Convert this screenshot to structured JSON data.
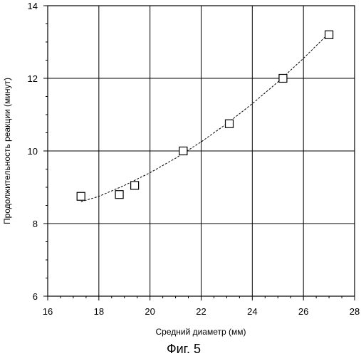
{
  "chart_data": {
    "type": "scatter",
    "title": "",
    "xlabel": "Средний диаметр (мм)",
    "ylabel": "Продолжительность реакции (минут)",
    "caption": "Фиг. 5",
    "xlim": [
      16,
      28
    ],
    "ylim": [
      6,
      14
    ],
    "xticks": [
      "16",
      "18",
      "20",
      "22",
      "24",
      "26",
      "28"
    ],
    "yticks": [
      "6",
      "8",
      "10",
      "12",
      "14"
    ],
    "grid": true,
    "marker": "open-square",
    "series": [
      {
        "x": [
          17.3,
          18.8,
          19.4,
          21.3,
          23.1,
          25.2,
          27.0
        ],
        "y": [
          8.75,
          8.8,
          9.05,
          10.0,
          10.75,
          12.0,
          13.2
        ]
      }
    ],
    "trendline": {
      "style": "dashed",
      "x": [
        17.3,
        18.0,
        19.0,
        20.0,
        21.0,
        22.0,
        23.0,
        24.0,
        25.0,
        26.0,
        27.0
      ],
      "y": [
        8.6,
        8.75,
        9.05,
        9.4,
        9.8,
        10.25,
        10.75,
        11.3,
        11.9,
        12.55,
        13.25
      ]
    }
  }
}
